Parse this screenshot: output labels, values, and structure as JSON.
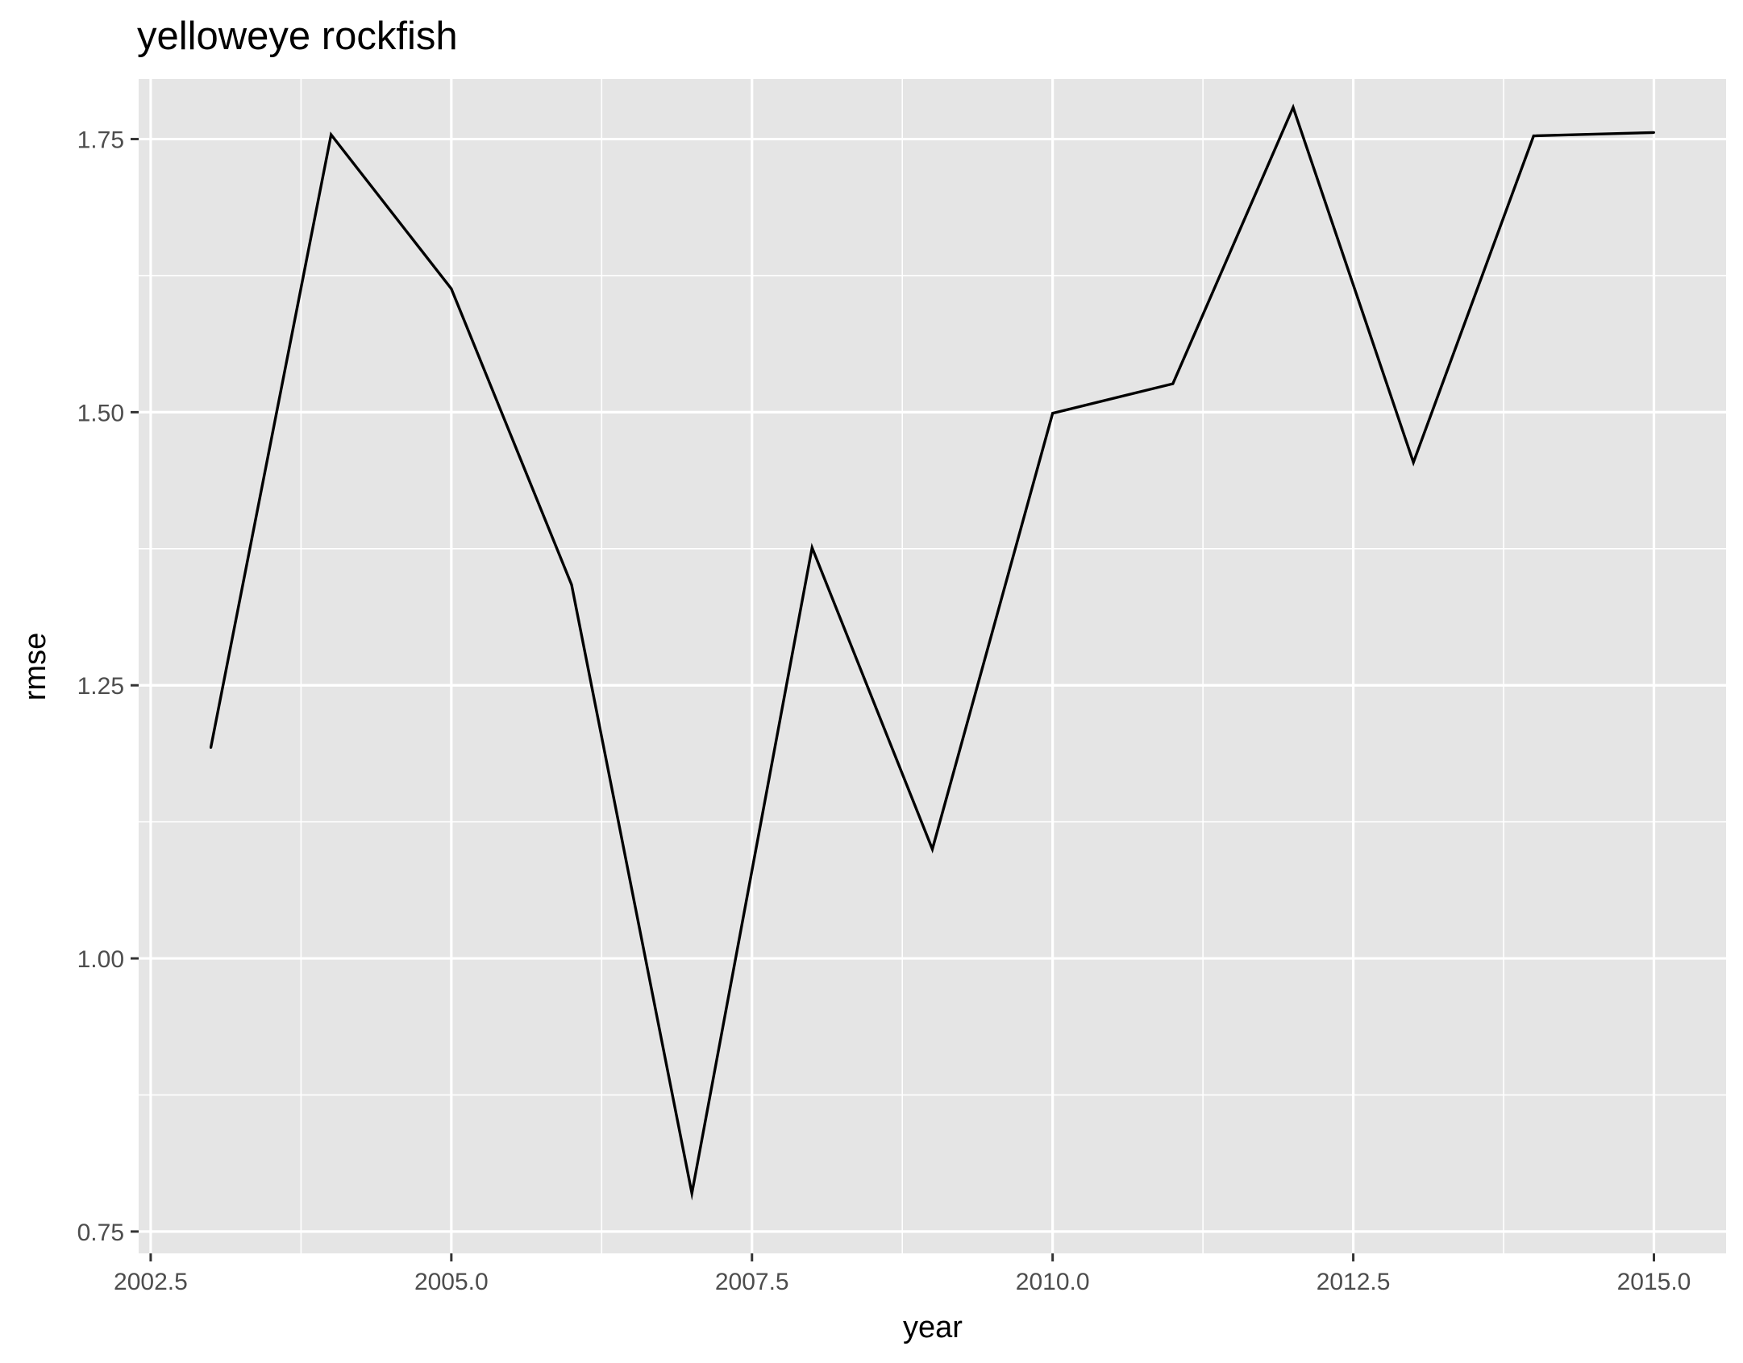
{
  "chart_data": {
    "type": "line",
    "title": "yelloweye rockfish",
    "xlabel": "year",
    "ylabel": "rmse",
    "xlim": [
      2002.4,
      2015.6
    ],
    "ylim": [
      0.73,
      1.805
    ],
    "xticks": [
      2002.5,
      2005.0,
      2007.5,
      2010.0,
      2012.5,
      2015.0
    ],
    "xtick_labels": [
      "2002.5",
      "2005.0",
      "2007.5",
      "2010.0",
      "2012.5",
      "2015.0"
    ],
    "yticks": [
      0.75,
      1.0,
      1.25,
      1.5,
      1.75
    ],
    "ytick_labels": [
      "0.75",
      "1.00",
      "1.25",
      "1.50",
      "1.75"
    ],
    "grid": true,
    "legend": "none",
    "panel_color": "#e5e5e5",
    "line_color": "#000000",
    "series": [
      {
        "x": [
          2003,
          2004,
          2005,
          2006,
          2007,
          2008,
          2009,
          2010,
          2011,
          2012,
          2013,
          2014,
          2015
        ],
        "y": [
          1.193,
          1.754,
          1.613,
          1.342,
          0.785,
          1.376,
          1.1,
          1.499,
          1.526,
          1.779,
          1.454,
          1.753,
          1.756
        ]
      }
    ]
  }
}
